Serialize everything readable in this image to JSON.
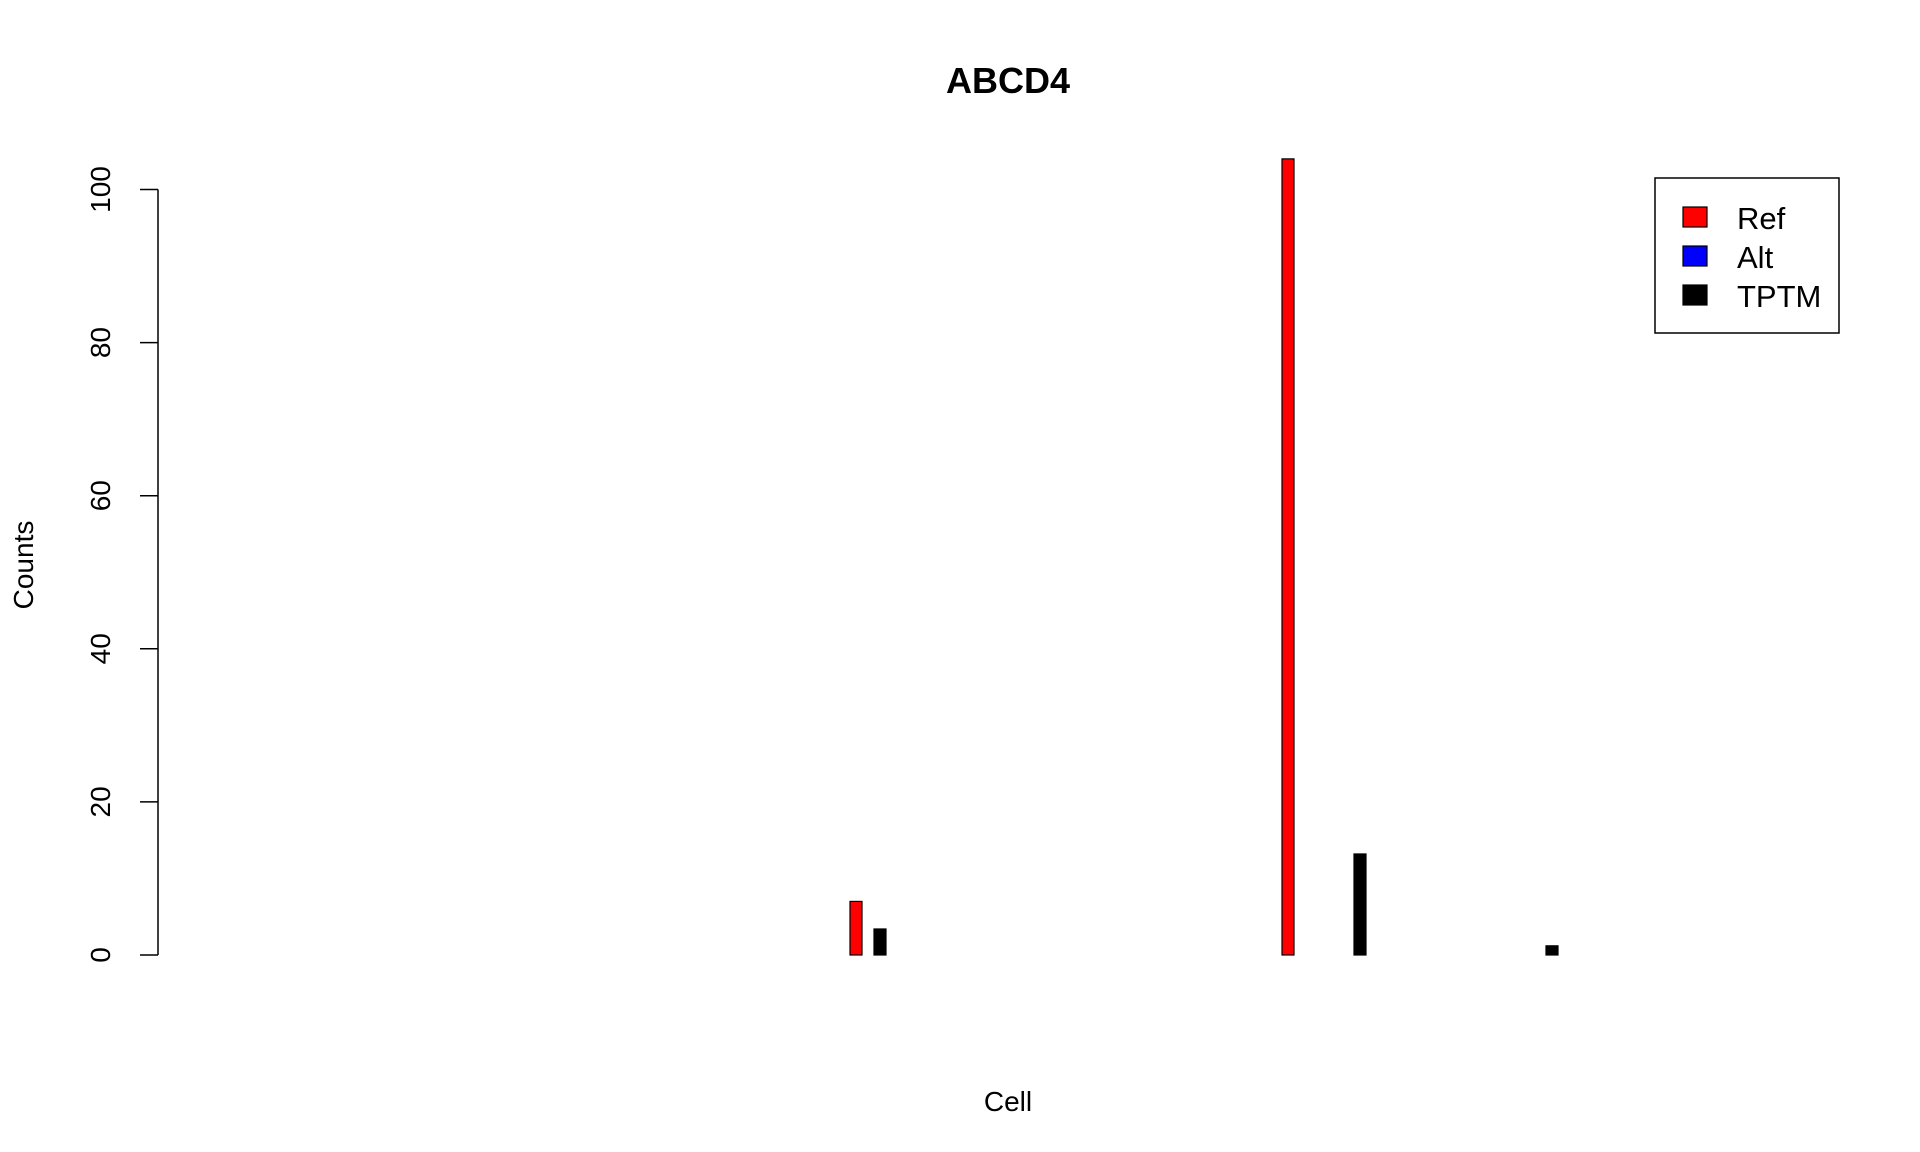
{
  "chart_data": {
    "type": "bar",
    "title": "ABCD4",
    "xlabel": "Cell",
    "ylabel": "Counts",
    "ylim": [
      0,
      104
    ],
    "yticks": [
      0,
      20,
      40,
      60,
      80,
      100
    ],
    "legend": {
      "position": "top-right",
      "entries": [
        {
          "label": "Ref",
          "color": "#ff0000"
        },
        {
          "label": "Alt",
          "color": "#0000ff"
        },
        {
          "label": "TPTM",
          "color": "#000000"
        }
      ]
    },
    "n_categories": 37,
    "series": [
      {
        "name": "Ref",
        "color": "#ff0000",
        "points": [
          {
            "i": 10,
            "v": 7
          },
          {
            "i": 19,
            "v": 104
          },
          {
            "i": 20,
            "v": 0
          },
          {
            "i": 22,
            "v": 0
          },
          {
            "i": 24,
            "v": 0
          }
        ]
      },
      {
        "name": "Alt",
        "color": "#0000ff",
        "points": [
          {
            "i": 10,
            "v": 0
          },
          {
            "i": 19,
            "v": 0
          },
          {
            "i": 20,
            "v": 0
          },
          {
            "i": 22,
            "v": 0
          },
          {
            "i": 24,
            "v": 0
          }
        ]
      },
      {
        "name": "TPTM",
        "color": "#000000",
        "points": [
          {
            "i": 10,
            "v": 3.4
          },
          {
            "i": 19,
            "v": 0
          },
          {
            "i": 20,
            "v": 13.2
          },
          {
            "i": 22,
            "v": 0
          },
          {
            "i": 24,
            "v": 1.2
          }
        ]
      }
    ]
  }
}
